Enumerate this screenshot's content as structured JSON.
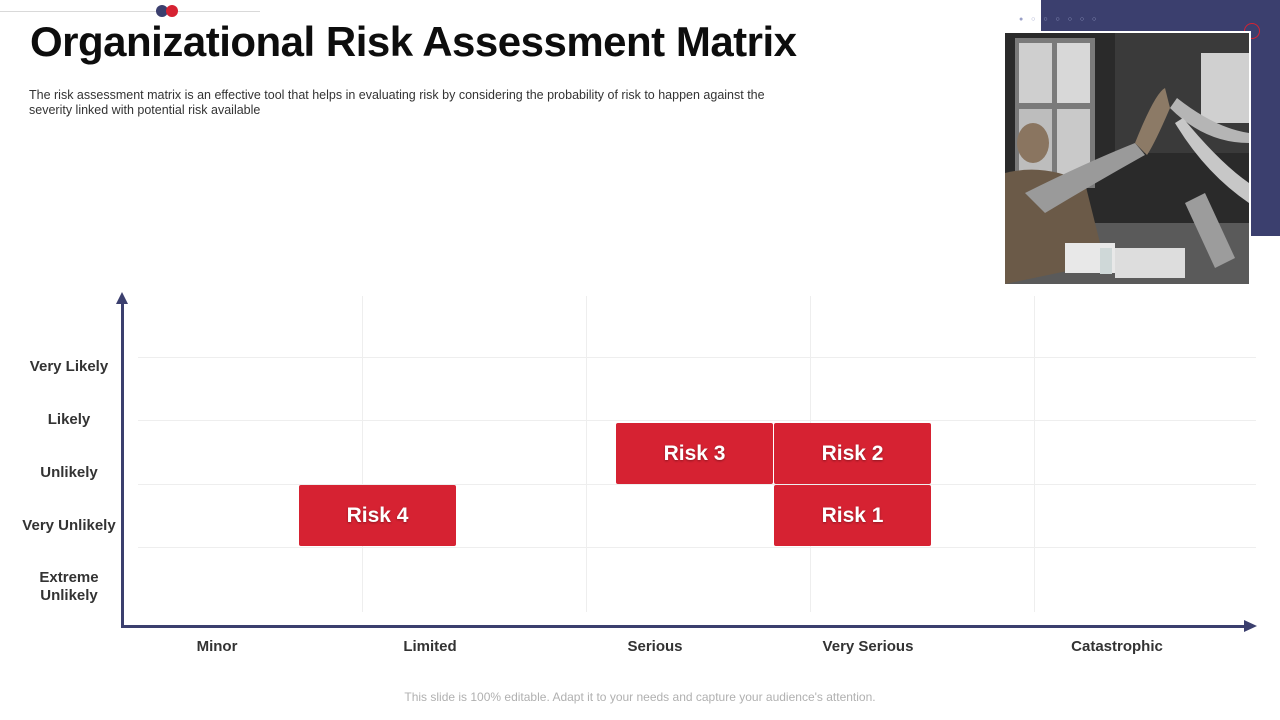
{
  "header": {
    "title": "Organizational Risk Assessment Matrix",
    "subtitle": "The risk assessment matrix is an effective  tool that helps in evaluating  risk by considering  the probability  of risk to happen against the severity  linked with potential risk available"
  },
  "colors": {
    "accent_navy": "#3b3f6e",
    "accent_red": "#d62232"
  },
  "matrix": {
    "y_labels": [
      "Very Likely",
      "Likely",
      "Unlikely",
      "Very Unlikely",
      "Extreme\nUnlikely"
    ],
    "x_labels": [
      "Minor",
      "Limited",
      "Serious",
      "Very Serious",
      "Catastrophic"
    ],
    "risks": [
      {
        "label": "Risk 3"
      },
      {
        "label": "Risk 2"
      },
      {
        "label": "Risk 4"
      },
      {
        "label": "Risk 1"
      }
    ]
  },
  "footer": {
    "note": "This slide is 100% editable. Adapt it to your needs and capture your audience's attention."
  }
}
